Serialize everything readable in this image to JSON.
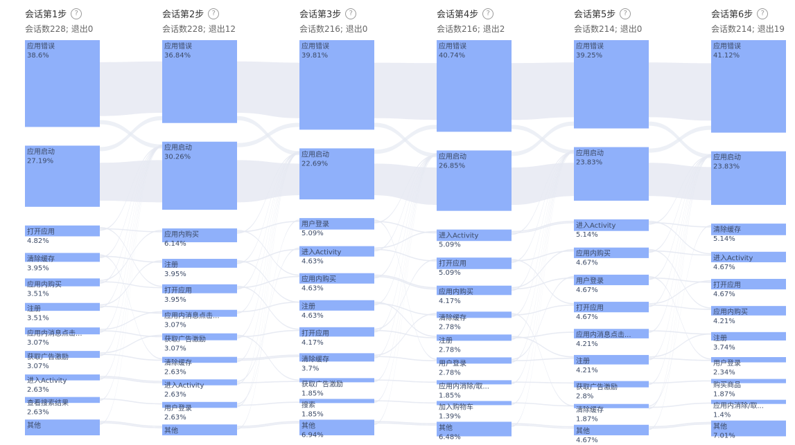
{
  "chart_data": {
    "type": "sankey",
    "columns": [
      {
        "title": "会话第1步",
        "subtitle": "会话数228; 退出0",
        "nodes": [
          {
            "label": "应用错误",
            "pct": "38.6%",
            "value": 38.6
          },
          {
            "label": "应用启动",
            "pct": "27.19%",
            "value": 27.19
          },
          {
            "label": "打开应用",
            "pct": "4.82%",
            "value": 4.82
          },
          {
            "label": "清除缓存",
            "pct": "3.95%",
            "value": 3.95
          },
          {
            "label": "应用内购买",
            "pct": "3.51%",
            "value": 3.51
          },
          {
            "label": "注册",
            "pct": "3.51%",
            "value": 3.51
          },
          {
            "label": "应用内消息点击...",
            "pct": "3.07%",
            "value": 3.07
          },
          {
            "label": "获取广告激励",
            "pct": "3.07%",
            "value": 3.07
          },
          {
            "label": "进入Activity",
            "pct": "2.63%",
            "value": 2.63
          },
          {
            "label": "查看搜索结果",
            "pct": "2.63%",
            "value": 2.63
          },
          {
            "label": "其他",
            "pct": "",
            "value": 7.02
          }
        ]
      },
      {
        "title": "会话第2步",
        "subtitle": "会话数228; 退出12",
        "nodes": [
          {
            "label": "应用错误",
            "pct": "36.84%",
            "value": 36.84
          },
          {
            "label": "应用启动",
            "pct": "30.26%",
            "value": 30.26
          },
          {
            "label": "应用内购买",
            "pct": "6.14%",
            "value": 6.14
          },
          {
            "label": "注册",
            "pct": "3.95%",
            "value": 3.95
          },
          {
            "label": "打开应用",
            "pct": "3.95%",
            "value": 3.95
          },
          {
            "label": "应用内消息点击...",
            "pct": "3.07%",
            "value": 3.07
          },
          {
            "label": "获取广告激励",
            "pct": "3.07%",
            "value": 3.07
          },
          {
            "label": "清除缓存",
            "pct": "2.63%",
            "value": 2.63
          },
          {
            "label": "进入Activity",
            "pct": "2.63%",
            "value": 2.63
          },
          {
            "label": "用户登录",
            "pct": "2.63%",
            "value": 2.63
          },
          {
            "label": "其他",
            "pct": "",
            "value": 4.83
          }
        ]
      },
      {
        "title": "会话第3步",
        "subtitle": "会话数216; 退出0",
        "nodes": [
          {
            "label": "应用错误",
            "pct": "39.81%",
            "value": 39.81
          },
          {
            "label": "应用启动",
            "pct": "22.69%",
            "value": 22.69
          },
          {
            "label": "用户登录",
            "pct": "5.09%",
            "value": 5.09
          },
          {
            "label": "进入Activity",
            "pct": "4.63%",
            "value": 4.63
          },
          {
            "label": "应用内购买",
            "pct": "4.63%",
            "value": 4.63
          },
          {
            "label": "注册",
            "pct": "4.63%",
            "value": 4.63
          },
          {
            "label": "打开应用",
            "pct": "4.17%",
            "value": 4.17
          },
          {
            "label": "清除缓存",
            "pct": "3.7%",
            "value": 3.7
          },
          {
            "label": "获取广告激励",
            "pct": "1.85%",
            "value": 1.85
          },
          {
            "label": "搜索",
            "pct": "1.85%",
            "value": 1.85
          },
          {
            "label": "其他",
            "pct": "6.94%",
            "value": 6.94
          }
        ]
      },
      {
        "title": "会话第4步",
        "subtitle": "会话数216; 退出2",
        "nodes": [
          {
            "label": "应用错误",
            "pct": "40.74%",
            "value": 40.74
          },
          {
            "label": "应用启动",
            "pct": "26.85%",
            "value": 26.85
          },
          {
            "label": "进入Activity",
            "pct": "5.09%",
            "value": 5.09
          },
          {
            "label": "打开应用",
            "pct": "5.09%",
            "value": 5.09
          },
          {
            "label": "应用内购买",
            "pct": "4.17%",
            "value": 4.17
          },
          {
            "label": "清除缓存",
            "pct": "2.78%",
            "value": 2.78
          },
          {
            "label": "注册",
            "pct": "2.78%",
            "value": 2.78
          },
          {
            "label": "用户登录",
            "pct": "2.78%",
            "value": 2.78
          },
          {
            "label": "应用内消除/取...",
            "pct": "1.85%",
            "value": 1.85
          },
          {
            "label": "加入购物车",
            "pct": "1.39%",
            "value": 1.39
          },
          {
            "label": "其他",
            "pct": "6.48%",
            "value": 6.48
          }
        ]
      },
      {
        "title": "会话第5步",
        "subtitle": "会话数214; 退出0",
        "nodes": [
          {
            "label": "应用错误",
            "pct": "39.25%",
            "value": 39.25
          },
          {
            "label": "应用启动",
            "pct": "23.83%",
            "value": 23.83
          },
          {
            "label": "进入Activity",
            "pct": "5.14%",
            "value": 5.14
          },
          {
            "label": "应用内购买",
            "pct": "4.67%",
            "value": 4.67
          },
          {
            "label": "用户登录",
            "pct": "4.67%",
            "value": 4.67
          },
          {
            "label": "打开应用",
            "pct": "4.67%",
            "value": 4.67
          },
          {
            "label": "应用内消息点击...",
            "pct": "4.21%",
            "value": 4.21
          },
          {
            "label": "注册",
            "pct": "4.21%",
            "value": 4.21
          },
          {
            "label": "获取广告激励",
            "pct": "2.8%",
            "value": 2.8
          },
          {
            "label": "清除缓存",
            "pct": "1.87%",
            "value": 1.87
          },
          {
            "label": "其他",
            "pct": "4.67%",
            "value": 4.67
          }
        ]
      },
      {
        "title": "会话第6步",
        "subtitle": "会话数214; 退出19",
        "nodes": [
          {
            "label": "应用错误",
            "pct": "41.12%",
            "value": 41.12
          },
          {
            "label": "应用启动",
            "pct": "23.83%",
            "value": 23.83
          },
          {
            "label": "清除缓存",
            "pct": "5.14%",
            "value": 5.14
          },
          {
            "label": "进入Activity",
            "pct": "4.67%",
            "value": 4.67
          },
          {
            "label": "打开应用",
            "pct": "4.67%",
            "value": 4.67
          },
          {
            "label": "应用内购买",
            "pct": "4.21%",
            "value": 4.21
          },
          {
            "label": "注册",
            "pct": "3.74%",
            "value": 3.74
          },
          {
            "label": "用户登录",
            "pct": "2.34%",
            "value": 2.34
          },
          {
            "label": "购买商品",
            "pct": "1.87%",
            "value": 1.87
          },
          {
            "label": "应用内消除/取...",
            "pct": "1.4%",
            "value": 1.4
          },
          {
            "label": "其他",
            "pct": "7.01%",
            "value": 7.01
          }
        ]
      }
    ],
    "colors": {
      "node": "#8fb0fa",
      "node_text": "#3c4a66",
      "link": "#e6e9f2"
    }
  }
}
